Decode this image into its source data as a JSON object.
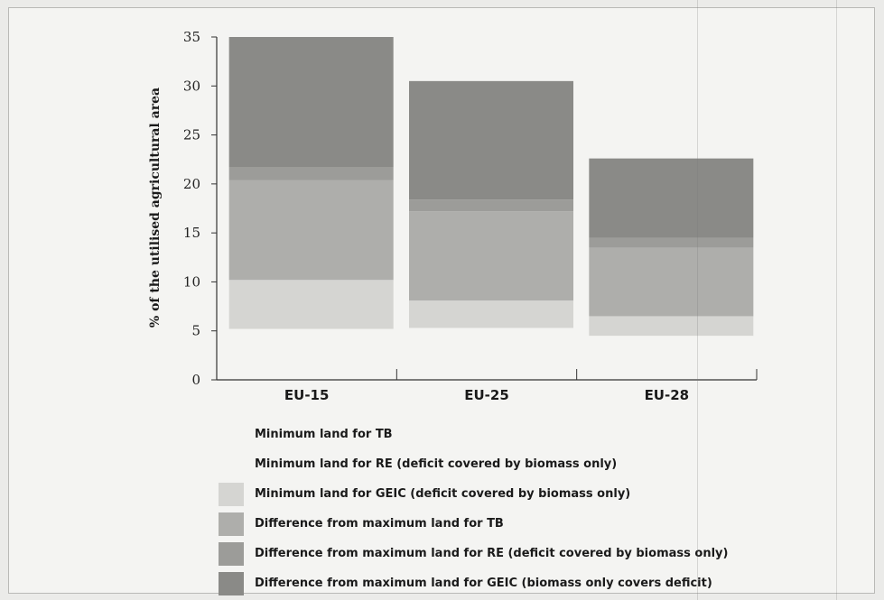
{
  "chart_data": {
    "type": "bar",
    "stacked": true,
    "floating_base": true,
    "categories": [
      "EU-15",
      "EU-25",
      "EU-28"
    ],
    "ylabel": "% of the utilised agricultural area",
    "xlabel": "",
    "ylim": [
      0,
      35
    ],
    "yticks": [
      0,
      5,
      10,
      15,
      20,
      25,
      30,
      35
    ],
    "base": [
      5.2,
      5.3,
      4.5
    ],
    "series": [
      {
        "name": "Minimum land for TB",
        "color": "#ebebe7",
        "values": [
          0,
          0,
          0
        ]
      },
      {
        "name": "Minimum land for RE (deficit covered by biomass only)",
        "color": "#ebebe7",
        "values": [
          0,
          0,
          0
        ]
      },
      {
        "name": "Minimum land for GEIC (deficit covered by biomass only)",
        "color": "#d5d5d2",
        "values": [
          5.0,
          2.8,
          2.0
        ]
      },
      {
        "name": "Difference from maximum land for TB",
        "color": "#aeaeab",
        "values": [
          10.2,
          9.1,
          7.0
        ]
      },
      {
        "name": "Difference from maximum land for RE (deficit covered by biomass only)",
        "color": "#9c9c99",
        "values": [
          1.3,
          1.2,
          1.0
        ]
      },
      {
        "name": "Difference from maximum land for GEIC (biomass only covers deficit)",
        "color": "#8a8a87",
        "values": [
          13.3,
          12.1,
          8.1
        ]
      }
    ],
    "grid": false,
    "legend": "bottom"
  }
}
